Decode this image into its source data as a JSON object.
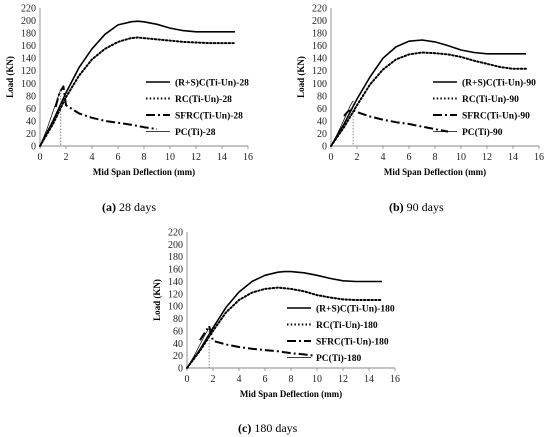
{
  "chart_data": [
    {
      "type": "line",
      "caption_letter": "(a)",
      "caption_text": " 28 days",
      "xlabel": "Mid Span Deflection (mm)",
      "ylabel": "Load (KN)",
      "xlim": [
        0,
        16
      ],
      "ylim": [
        0,
        220
      ],
      "xticks": [
        "0",
        "2",
        "4",
        "6",
        "8",
        "10",
        "12",
        "14",
        "16"
      ],
      "yticks": [
        "0",
        "20",
        "40",
        "60",
        "80",
        "100",
        "120",
        "140",
        "160",
        "180",
        "200",
        "220"
      ],
      "legend_position": "right",
      "series": [
        {
          "name": "(R+S)C(Ti-Un)-28",
          "style": "solid",
          "x": [
            0,
            1,
            2,
            3,
            4,
            5,
            6,
            7,
            7.5,
            8,
            9,
            10,
            11,
            12,
            13,
            14,
            15
          ],
          "y": [
            0,
            40,
            85,
            125,
            155,
            178,
            193,
            198,
            199,
            198,
            194,
            188,
            184,
            182,
            182,
            182,
            182
          ]
        },
        {
          "name": "RC(Ti-Un)-28",
          "style": "dotted",
          "x": [
            0,
            1,
            2,
            3,
            4,
            5,
            6,
            7,
            7.5,
            8,
            9,
            10,
            11,
            12,
            13,
            14,
            15
          ],
          "y": [
            0,
            35,
            78,
            112,
            138,
            155,
            166,
            172,
            173,
            172,
            170,
            168,
            166,
            165,
            164,
            164,
            164
          ]
        },
        {
          "name": "SFRC(Ti-Un)-28",
          "style": "dashdot",
          "x": [
            1.2,
            1.5,
            1.8,
            2,
            3,
            4,
            5,
            6,
            7,
            8,
            9
          ],
          "y": [
            62,
            85,
            95,
            65,
            52,
            45,
            40,
            37,
            34,
            30,
            27
          ]
        },
        {
          "name": "PC(Ti)-28",
          "style": "thin",
          "x": [
            0,
            0.5,
            1,
            1.5,
            1.6
          ],
          "y": [
            0,
            25,
            55,
            85,
            90
          ],
          "drop_x": 1.6
        }
      ]
    },
    {
      "type": "line",
      "caption_letter": "(b)",
      "caption_text": " 90 days",
      "xlabel": "Mid Span Deflection (mm)",
      "ylabel": "Load (KN)",
      "xlim": [
        0,
        16
      ],
      "ylim": [
        0,
        220
      ],
      "xticks": [
        "0",
        "2",
        "4",
        "6",
        "8",
        "10",
        "12",
        "14",
        "16"
      ],
      "yticks": [
        "0",
        "20",
        "40",
        "60",
        "80",
        "100",
        "120",
        "140",
        "160",
        "180",
        "200",
        "220"
      ],
      "legend_position": "right",
      "series": [
        {
          "name": "(R+S)C(Ti-Un)-90",
          "style": "solid",
          "x": [
            0,
            1,
            2,
            3,
            4,
            5,
            6,
            7,
            8,
            9,
            10,
            11,
            12,
            13,
            14,
            15
          ],
          "y": [
            0,
            35,
            75,
            110,
            140,
            158,
            167,
            169,
            166,
            160,
            153,
            149,
            147,
            147,
            147,
            147
          ]
        },
        {
          "name": "RC(Ti-Un)-90",
          "style": "dotted",
          "x": [
            0,
            1,
            2,
            3,
            4,
            5,
            6,
            7,
            8,
            9,
            10,
            11,
            12,
            13,
            14,
            15
          ],
          "y": [
            0,
            30,
            65,
            98,
            122,
            138,
            146,
            149,
            148,
            146,
            142,
            136,
            131,
            126,
            123,
            123
          ]
        },
        {
          "name": "SFRC(Ti-Un)-90",
          "style": "dashdot",
          "x": [
            1,
            1.3,
            1.6,
            2,
            3,
            4,
            5,
            6,
            7,
            8,
            9
          ],
          "y": [
            48,
            55,
            58,
            54,
            47,
            42,
            38,
            35,
            31,
            27,
            23
          ]
        },
        {
          "name": "PC(Ti)-90",
          "style": "thin",
          "x": [
            0,
            0.5,
            1,
            1.5,
            1.7
          ],
          "y": [
            0,
            20,
            42,
            65,
            72
          ],
          "drop_x": 1.7
        }
      ]
    },
    {
      "type": "line",
      "caption_letter": "(c)",
      "caption_text": " 180 days",
      "xlabel": "Mid Span Deflection (mm)",
      "ylabel": "Load (KN)",
      "xlim": [
        0,
        16
      ],
      "ylim": [
        0,
        220
      ],
      "xticks": [
        "0",
        "2",
        "4",
        "6",
        "8",
        "10",
        "12",
        "14",
        "16"
      ],
      "yticks": [
        "0",
        "20",
        "40",
        "60",
        "80",
        "100",
        "120",
        "140",
        "160",
        "180",
        "200",
        "220"
      ],
      "legend_position": "right",
      "series": [
        {
          "name": "(R+S)C(Ti-Un)-180",
          "style": "solid",
          "x": [
            0,
            1,
            2,
            3,
            4,
            5,
            6,
            7,
            7.5,
            8,
            9,
            10,
            11,
            12,
            13,
            14,
            15
          ],
          "y": [
            0,
            30,
            65,
            98,
            123,
            140,
            150,
            155,
            156,
            156,
            154,
            150,
            145,
            141,
            140,
            140,
            140
          ]
        },
        {
          "name": "RC(Ti-Un)-180",
          "style": "dotted",
          "x": [
            0,
            1,
            2,
            3,
            4,
            5,
            6,
            7,
            8,
            9,
            10,
            11,
            12,
            13,
            14,
            15
          ],
          "y": [
            0,
            28,
            60,
            90,
            110,
            122,
            128,
            130,
            128,
            124,
            118,
            114,
            111,
            110,
            110,
            110
          ]
        },
        {
          "name": "SFRC(Ti-Un)-180",
          "style": "dashdot",
          "x": [
            1,
            1.4,
            1.7,
            2,
            3,
            4,
            5,
            6,
            7,
            8,
            9,
            9.7
          ],
          "y": [
            45,
            58,
            68,
            44,
            38,
            34,
            31,
            29,
            27,
            24,
            22,
            20
          ]
        },
        {
          "name": "PC(Ti)-180",
          "style": "thin",
          "x": [
            0,
            0.5,
            1,
            1.5,
            1.7
          ],
          "y": [
            0,
            18,
            38,
            58,
            65
          ],
          "drop_x": 1.7
        }
      ]
    }
  ]
}
